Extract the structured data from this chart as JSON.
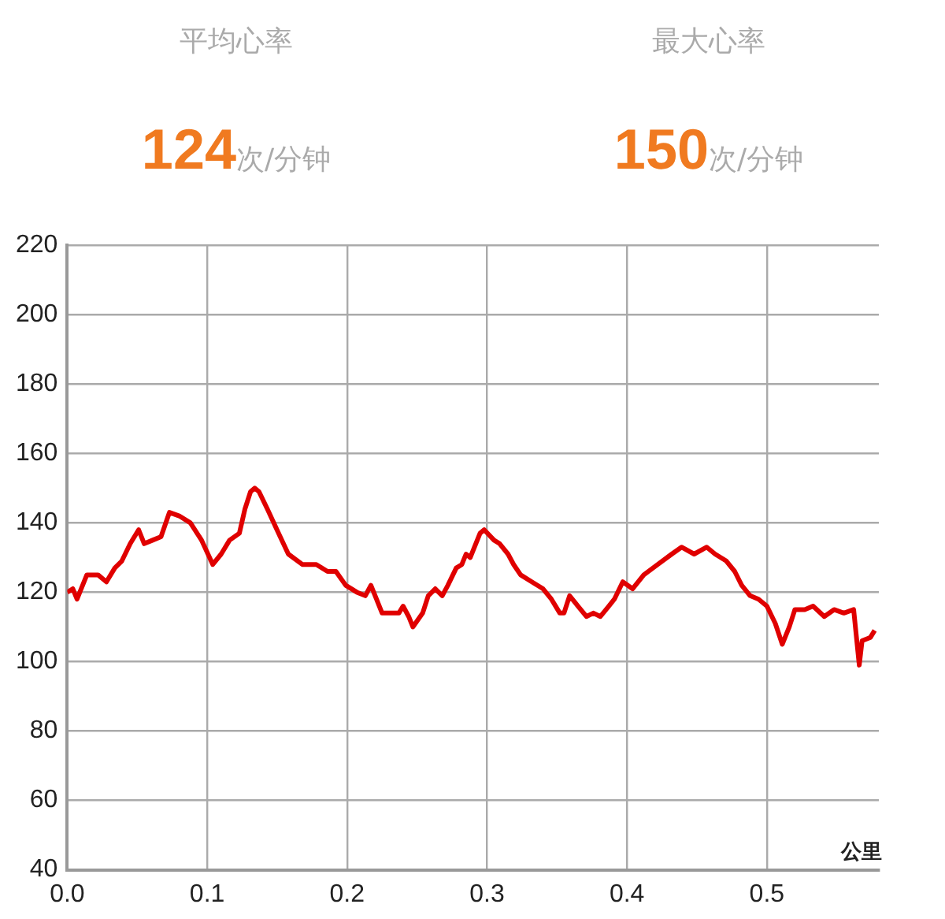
{
  "chart_data": [
    {
      "type": "other",
      "annotations": [
        "平均心率",
        "124",
        "次/分钟",
        "最大心率",
        "150",
        "次/分钟"
      ]
    },
    {
      "type": "line",
      "xlabel": "公里",
      "xlim": [
        0,
        0.58
      ],
      "xticks": [
        {
          "value": 0,
          "label": "0.0"
        },
        0.1,
        0.2,
        0.3,
        0.4,
        0.5
      ],
      "ylim": [
        40,
        220
      ],
      "yticks": [
        40,
        60,
        80,
        100,
        120,
        140,
        160,
        180,
        200,
        220
      ],
      "grid": true,
      "legend": false,
      "marker": "none",
      "line_style": "solid",
      "series": [
        {
          "color": "#e00000",
          "x": [
            0,
            0.004,
            0.007,
            0.014,
            0.022,
            0.028,
            0.034,
            0.039,
            0.045,
            0.051,
            0.055,
            0.061,
            0.067,
            0.073,
            0.08,
            0.088,
            0.096,
            0.104,
            0.11,
            0.116,
            0.123,
            0.127,
            0.131,
            0.134,
            0.137,
            0.143,
            0.151,
            0.158,
            0.168,
            0.178,
            0.186,
            0.192,
            0.199,
            0.207,
            0.213,
            0.217,
            0.221,
            0.225,
            0.231,
            0.237,
            0.24,
            0.244,
            0.247,
            0.254,
            0.258,
            0.263,
            0.268,
            0.272,
            0.278,
            0.282,
            0.285,
            0.288,
            0.295,
            0.298,
            0.305,
            0.309,
            0.315,
            0.319,
            0.324,
            0.332,
            0.34,
            0.346,
            0.352,
            0.355,
            0.359,
            0.365,
            0.371,
            0.376,
            0.381,
            0.387,
            0.391,
            0.397,
            0.404,
            0.412,
            0.422,
            0.432,
            0.439,
            0.448,
            0.457,
            0.463,
            0.471,
            0.477,
            0.482,
            0.488,
            0.494,
            0.5,
            0.506,
            0.511,
            0.516,
            0.52,
            0.527,
            0.533,
            0.541,
            0.548,
            0.555,
            0.562,
            0.566,
            0.568,
            0.574,
            0.577
          ],
          "values": [
            120,
            121,
            118,
            125,
            125,
            123,
            127,
            129,
            134,
            138,
            134,
            135,
            136,
            143,
            142,
            140,
            135,
            128,
            131,
            135,
            137,
            144,
            149,
            150,
            149,
            144,
            137,
            131,
            128,
            128,
            126,
            126,
            122,
            120,
            119,
            122,
            118,
            114,
            114,
            114,
            116,
            113,
            110,
            114,
            119,
            121,
            119,
            122,
            127,
            128,
            131,
            130,
            137,
            138,
            135,
            134,
            131,
            128,
            125,
            123,
            121,
            118,
            114,
            114,
            119,
            116,
            113,
            114,
            113,
            116,
            118,
            123,
            121,
            125,
            128,
            131,
            133,
            131,
            133,
            131,
            129,
            126,
            122,
            119,
            118,
            116,
            111,
            105,
            110,
            115,
            115,
            116,
            113,
            115,
            114,
            115,
            99,
            106,
            107,
            109
          ]
        }
      ]
    }
  ]
}
